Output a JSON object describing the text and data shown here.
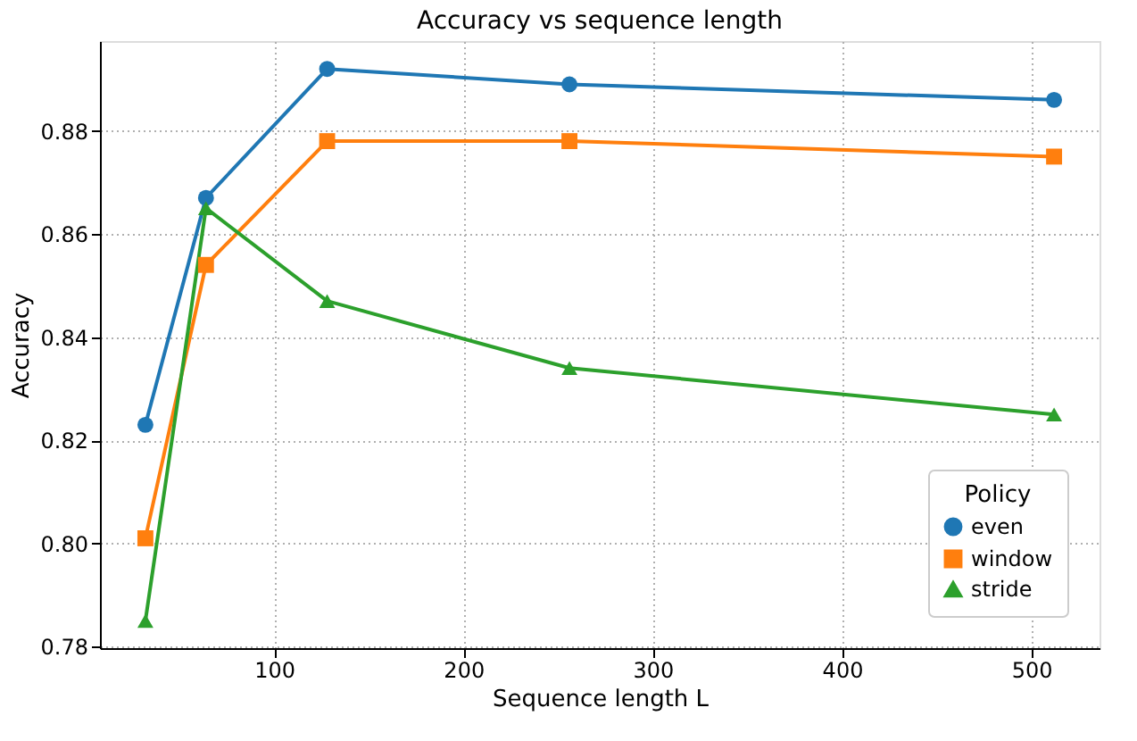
{
  "chart_data": {
    "type": "line",
    "title": "Accuracy vs sequence length",
    "xlabel": "Sequence length L",
    "ylabel": "Accuracy",
    "legend_title": "Policy",
    "x": [
      32,
      64,
      128,
      256,
      512
    ],
    "series": [
      {
        "name": "even",
        "color": "#1f77b4",
        "marker": "circle",
        "values": [
          0.823,
          0.867,
          0.892,
          0.889,
          0.886
        ]
      },
      {
        "name": "window",
        "color": "#ff7f0e",
        "marker": "square",
        "values": [
          0.801,
          0.854,
          0.878,
          0.878,
          0.875
        ]
      },
      {
        "name": "stride",
        "color": "#2ca02c",
        "marker": "triangle",
        "values": [
          0.785,
          0.865,
          0.847,
          0.834,
          0.825
        ]
      }
    ],
    "xlim": [
      8,
      536
    ],
    "xticks": [
      100,
      200,
      300,
      400,
      500
    ],
    "ylim": [
      0.7797,
      0.8974
    ],
    "yticks": [
      0.78,
      {
        "value": 0.8,
        "label": "0.80"
      },
      0.82,
      0.84,
      0.86,
      0.88
    ],
    "grid": true,
    "legend": "bottom right",
    "line_style": "solid"
  }
}
